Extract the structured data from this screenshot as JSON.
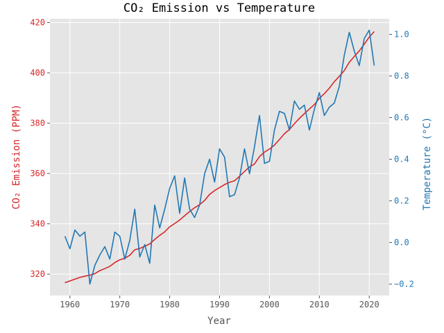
{
  "chart_data": {
    "type": "line",
    "title": "CO₂ Emission vs Temperature",
    "xlabel": "Year",
    "y1label": "CO₂ Emission (PPM)",
    "y2label": "Temperature (°C)",
    "xlim": [
      1956,
      2024
    ],
    "y1lim": [
      311.5,
      421.5
    ],
    "y2lim": [
      -0.255,
      1.075
    ],
    "xticks": [
      1960,
      1970,
      1980,
      1990,
      2000,
      2010,
      2020
    ],
    "y1ticks": [
      320,
      340,
      360,
      380,
      400,
      420
    ],
    "y2ticks": [
      -0.2,
      0.0,
      0.2,
      0.4,
      0.6,
      0.8,
      1.0
    ],
    "y2ticklabels": [
      "−0.2",
      "0.0",
      "0.2",
      "0.4",
      "0.6",
      "0.8",
      "1.0"
    ],
    "grid": true,
    "colors": {
      "co2": "#d62728",
      "temperature": "#1f77b4",
      "background": "#e5e5e5",
      "grid": "#ffffff",
      "text": "#555555"
    },
    "x": [
      1959,
      1960,
      1961,
      1962,
      1963,
      1964,
      1965,
      1966,
      1967,
      1968,
      1969,
      1970,
      1971,
      1972,
      1973,
      1974,
      1975,
      1976,
      1977,
      1978,
      1979,
      1980,
      1981,
      1982,
      1983,
      1984,
      1985,
      1986,
      1987,
      1988,
      1989,
      1990,
      1991,
      1992,
      1993,
      1994,
      1995,
      1996,
      1997,
      1998,
      1999,
      2000,
      2001,
      2002,
      2003,
      2004,
      2005,
      2006,
      2007,
      2008,
      2009,
      2010,
      2011,
      2012,
      2013,
      2014,
      2015,
      2016,
      2017,
      2018,
      2019,
      2020,
      2021
    ],
    "series": [
      {
        "key": "co2",
        "axis": "left",
        "values": [
          316.6,
          317.3,
          318.0,
          318.7,
          319.2,
          319.6,
          320.2,
          321.4,
          322.2,
          323.1,
          324.6,
          325.7,
          326.3,
          327.5,
          329.7,
          330.2,
          331.1,
          332.0,
          333.8,
          335.4,
          336.8,
          338.8,
          340.1,
          341.5,
          343.2,
          344.9,
          346.4,
          347.6,
          349.3,
          351.7,
          353.2,
          354.4,
          355.6,
          356.5,
          357.1,
          358.9,
          360.8,
          362.6,
          363.8,
          366.7,
          368.5,
          369.7,
          371.3,
          373.5,
          375.8,
          377.5,
          379.8,
          381.9,
          383.8,
          385.6,
          387.4,
          389.9,
          391.7,
          393.9,
          396.5,
          398.6,
          400.9,
          404.2,
          406.5,
          408.7,
          411.4,
          414.2,
          416.4
        ]
      },
      {
        "key": "temperature",
        "axis": "right",
        "values": [
          0.03,
          -0.03,
          0.06,
          0.03,
          0.05,
          -0.2,
          -0.11,
          -0.06,
          -0.02,
          -0.08,
          0.05,
          0.03,
          -0.08,
          0.01,
          0.16,
          -0.07,
          -0.01,
          -0.1,
          0.18,
          0.07,
          0.16,
          0.26,
          0.32,
          0.14,
          0.31,
          0.16,
          0.12,
          0.18,
          0.33,
          0.4,
          0.29,
          0.45,
          0.41,
          0.22,
          0.23,
          0.31,
          0.45,
          0.33,
          0.46,
          0.61,
          0.38,
          0.39,
          0.54,
          0.63,
          0.62,
          0.54,
          0.68,
          0.64,
          0.66,
          0.54,
          0.64,
          0.72,
          0.61,
          0.65,
          0.67,
          0.75,
          0.9,
          1.01,
          0.92,
          0.85,
          0.98,
          1.02,
          0.85
        ]
      }
    ]
  }
}
